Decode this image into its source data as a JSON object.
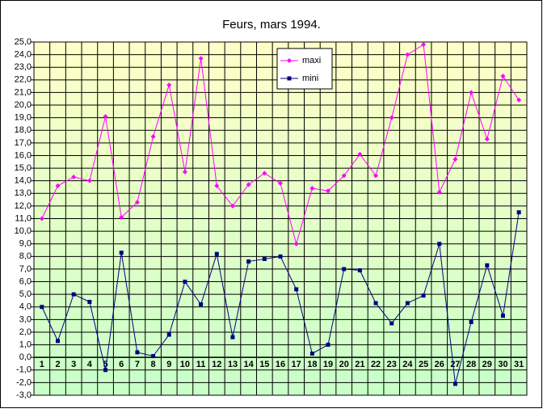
{
  "chart_data": {
    "type": "line",
    "title": "Feurs, mars 1994.",
    "categories": [
      "1",
      "2",
      "3",
      "4",
      "5",
      "6",
      "7",
      "8",
      "9",
      "10",
      "11",
      "12",
      "13",
      "14",
      "15",
      "16",
      "17",
      "18",
      "19",
      "20",
      "21",
      "22",
      "23",
      "24",
      "25",
      "26",
      "27",
      "28",
      "29",
      "30",
      "31"
    ],
    "series": [
      {
        "name": "maxi",
        "color": "#ff00ff",
        "marker": "diamond",
        "values": [
          11.0,
          13.6,
          14.3,
          14.0,
          19.1,
          11.1,
          12.3,
          17.5,
          21.6,
          14.7,
          23.7,
          13.6,
          12.0,
          13.7,
          14.6,
          13.8,
          9.0,
          13.4,
          13.2,
          14.4,
          16.1,
          14.4,
          19.0,
          24.0,
          24.8,
          13.1,
          15.7,
          21.0,
          17.3,
          22.3,
          20.4
        ]
      },
      {
        "name": "mini",
        "color": "#000080",
        "marker": "square",
        "values": [
          4.0,
          1.3,
          5.0,
          4.4,
          -1.0,
          8.3,
          0.4,
          0.1,
          1.8,
          6.0,
          4.2,
          8.2,
          1.6,
          7.6,
          7.8,
          8.0,
          5.4,
          0.3,
          1.0,
          7.0,
          6.9,
          4.3,
          2.7,
          4.3,
          4.9,
          9.0,
          -2.1,
          2.8,
          7.3,
          3.3,
          11.5
        ]
      }
    ],
    "ylim": [
      -3,
      25
    ],
    "yticks": [
      {
        "value": -3,
        "label": "-3,0"
      },
      {
        "value": -2,
        "label": "-2,0"
      },
      {
        "value": -1,
        "label": "-1,0"
      },
      {
        "value": 0,
        "label": "0,0"
      },
      {
        "value": 1,
        "label": "1,0"
      },
      {
        "value": 2,
        "label": "2,0"
      },
      {
        "value": 3,
        "label": "3,0"
      },
      {
        "value": 4,
        "label": "4,0"
      },
      {
        "value": 5,
        "label": "5,0"
      },
      {
        "value": 6,
        "label": "6,0"
      },
      {
        "value": 7,
        "label": "7,0"
      },
      {
        "value": 8,
        "label": "8,0"
      },
      {
        "value": 9,
        "label": "9,0"
      },
      {
        "value": 10,
        "label": "10,0"
      },
      {
        "value": 11,
        "label": "11,0"
      },
      {
        "value": 12,
        "label": "12,0"
      },
      {
        "value": 13,
        "label": "13,0"
      },
      {
        "value": 14,
        "label": "14,0"
      },
      {
        "value": 15,
        "label": "15,0"
      },
      {
        "value": 16,
        "label": "16,0"
      },
      {
        "value": 17,
        "label": "17,0"
      },
      {
        "value": 18,
        "label": "18,0"
      },
      {
        "value": 19,
        "label": "19,0"
      },
      {
        "value": 20,
        "label": "20,0"
      },
      {
        "value": 21,
        "label": "21,0"
      },
      {
        "value": 22,
        "label": "22,0"
      },
      {
        "value": 23,
        "label": "23,0"
      },
      {
        "value": 24,
        "label": "24,0"
      },
      {
        "value": 25,
        "label": "25,0"
      }
    ],
    "grid": true,
    "legend": "top"
  }
}
